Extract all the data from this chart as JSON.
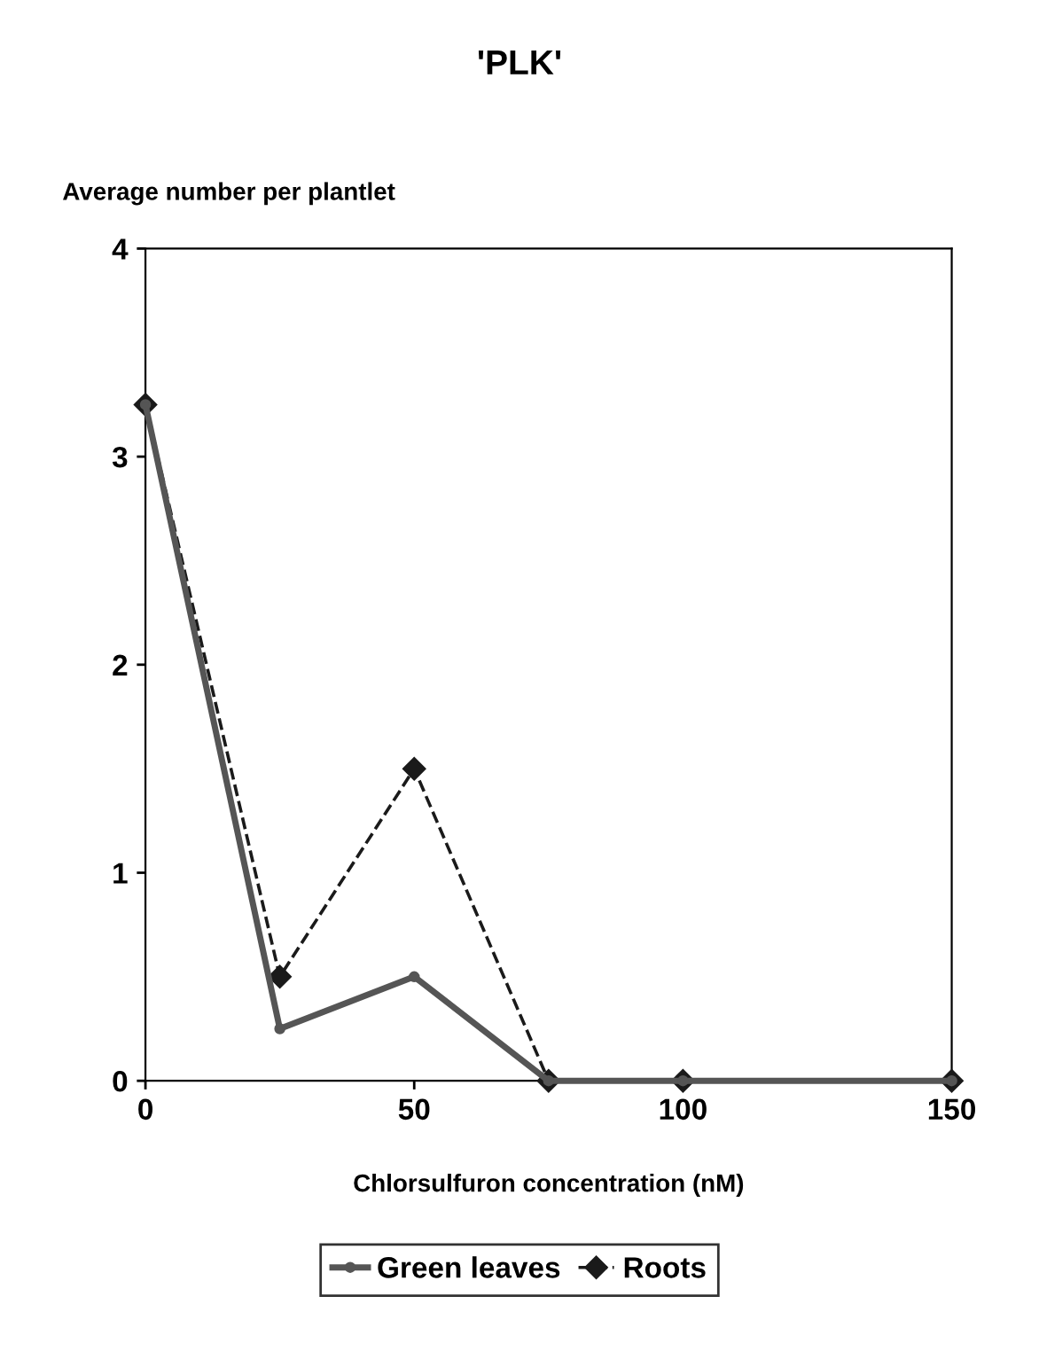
{
  "chart_data": {
    "type": "line",
    "title": "'PLK'",
    "ylabel": "Average number per plantlet",
    "xlabel": "Chlorsulfuron concentration (nM)",
    "x": [
      0,
      25,
      50,
      75,
      100,
      150
    ],
    "series": [
      {
        "name": "Green leaves",
        "color": "#555555",
        "values": [
          3.25,
          0.25,
          0.5,
          0,
          0,
          0
        ],
        "line_style": "solid",
        "marker": "circle"
      },
      {
        "name": "Roots",
        "color": "#1a1a1a",
        "values": [
          3.25,
          0.5,
          1.5,
          0,
          0,
          0
        ],
        "line_style": "dashed",
        "marker": "diamond"
      }
    ],
    "xlim": [
      0,
      150
    ],
    "xticks": [
      0,
      50,
      100,
      150
    ],
    "ylim": [
      0,
      4
    ],
    "yticks": [
      0,
      1,
      2,
      3,
      4
    ],
    "grid": false,
    "legend": "bottom"
  }
}
